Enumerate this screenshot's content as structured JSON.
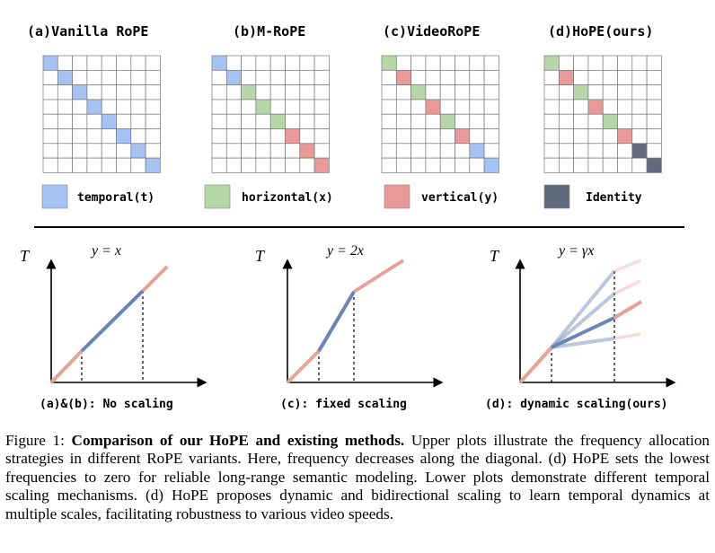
{
  "panels_top": [
    {
      "title": "(a)Vanilla RoPE",
      "diagonal": [
        "t",
        "t",
        "t",
        "t",
        "t",
        "t",
        "t",
        "t"
      ]
    },
    {
      "title": "(b)M-RoPE",
      "diagonal": [
        "t",
        "t",
        "x",
        "x",
        "x",
        "y",
        "y",
        "y"
      ]
    },
    {
      "title": "(c)VideoRoPE",
      "diagonal": [
        "x",
        "y",
        "x",
        "y",
        "x",
        "y",
        "t",
        "t"
      ]
    },
    {
      "title": "(d)HoPE(ours)",
      "diagonal": [
        "x",
        "y",
        "x",
        "y",
        "x",
        "y",
        "i",
        "i"
      ]
    }
  ],
  "legend": [
    {
      "key": "t",
      "label": "temporal(t)",
      "color": "#a4c2f4"
    },
    {
      "key": "x",
      "label": "horizontal(x)",
      "color": "#b6d7a8"
    },
    {
      "key": "y",
      "label": "vertical(y)",
      "color": "#ea9999"
    },
    {
      "key": "i",
      "label": "Identity",
      "color": "#5f6b7c"
    }
  ],
  "grid_size": 8,
  "axis_label": "T",
  "plots": [
    {
      "equation": "y = x",
      "caption": "(a)&(b): No scaling"
    },
    {
      "equation": "y = 2x",
      "caption": "(c): fixed scaling"
    },
    {
      "equation": "y = γx",
      "caption": "(d): dynamic scaling(ours)"
    }
  ],
  "colors": {
    "line_red": "#e8a09a",
    "line_blue": "#6a84b5",
    "grid": "#777777"
  },
  "caption": {
    "label": "Figure 1:",
    "bold": "Comparison of our HoPE and existing methods.",
    "text": "Upper plots illustrate the frequency allocation strategies in different RoPE variants. Here, frequency decreases along the diagonal. (d) HoPE sets the lowest frequencies to zero for reliable long-range semantic modeling. Lower plots demonstrate different temporal scaling mechanisms. (d) HoPE proposes dynamic and bidirectional scaling to learn temporal dynamics at multiple scales, facilitating robustness to various video speeds."
  }
}
